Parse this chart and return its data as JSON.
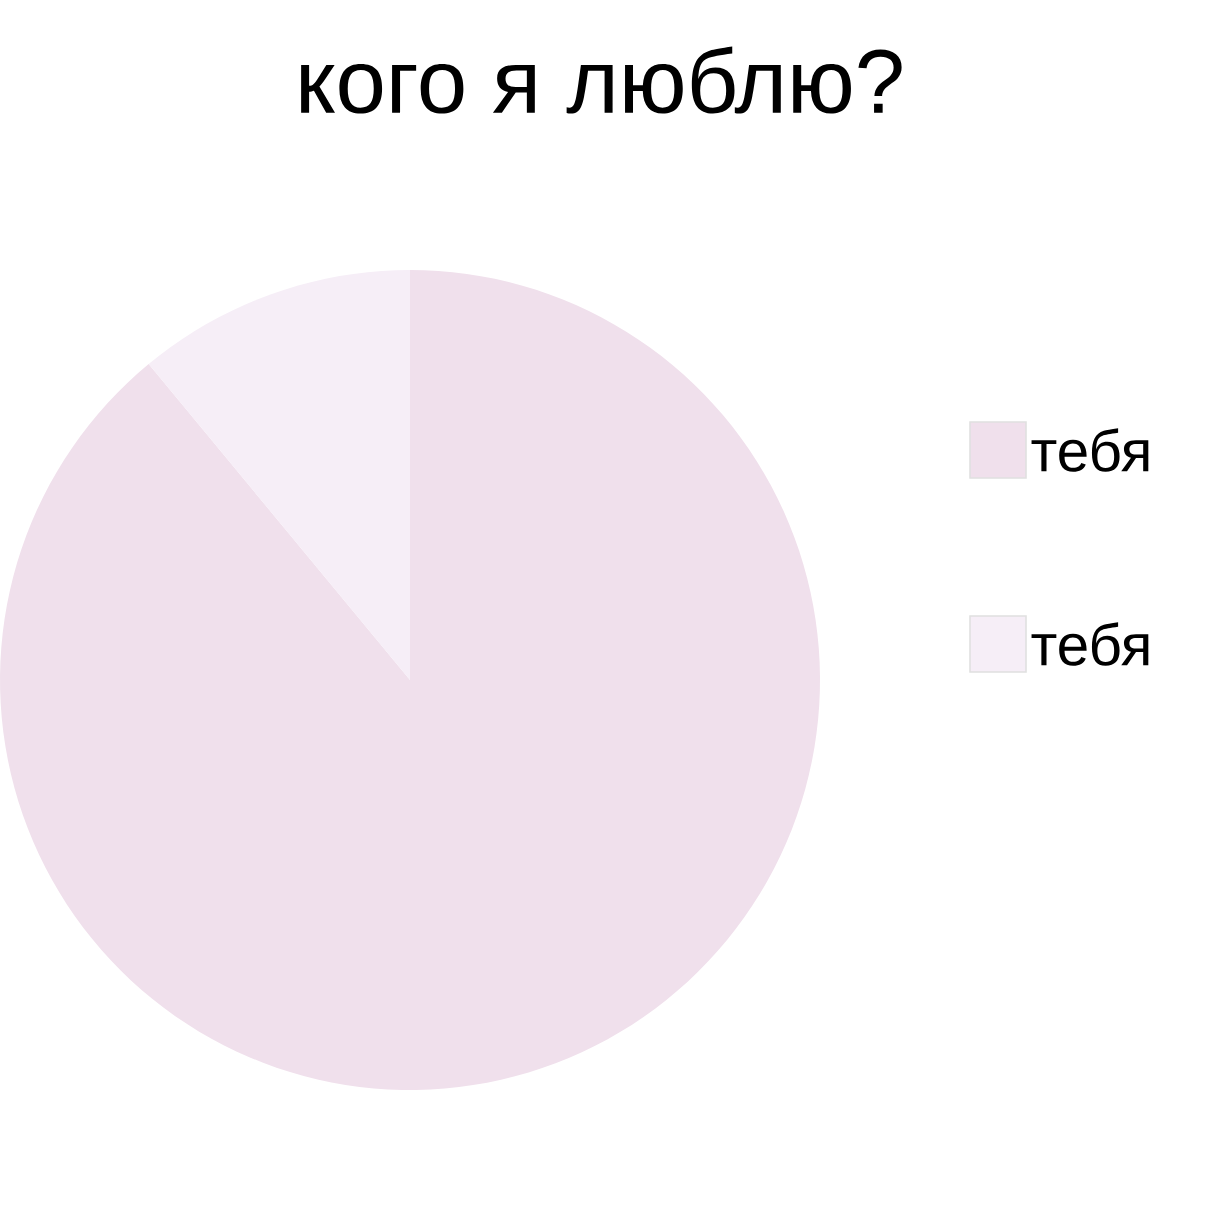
{
  "chart_data": {
    "type": "pie",
    "title": "кого я люблю?",
    "categories": [
      "тебя",
      "тебя"
    ],
    "values": [
      89,
      11
    ],
    "colors": [
      "#f0e0ec",
      "#f6eef7"
    ],
    "legend": "right"
  }
}
